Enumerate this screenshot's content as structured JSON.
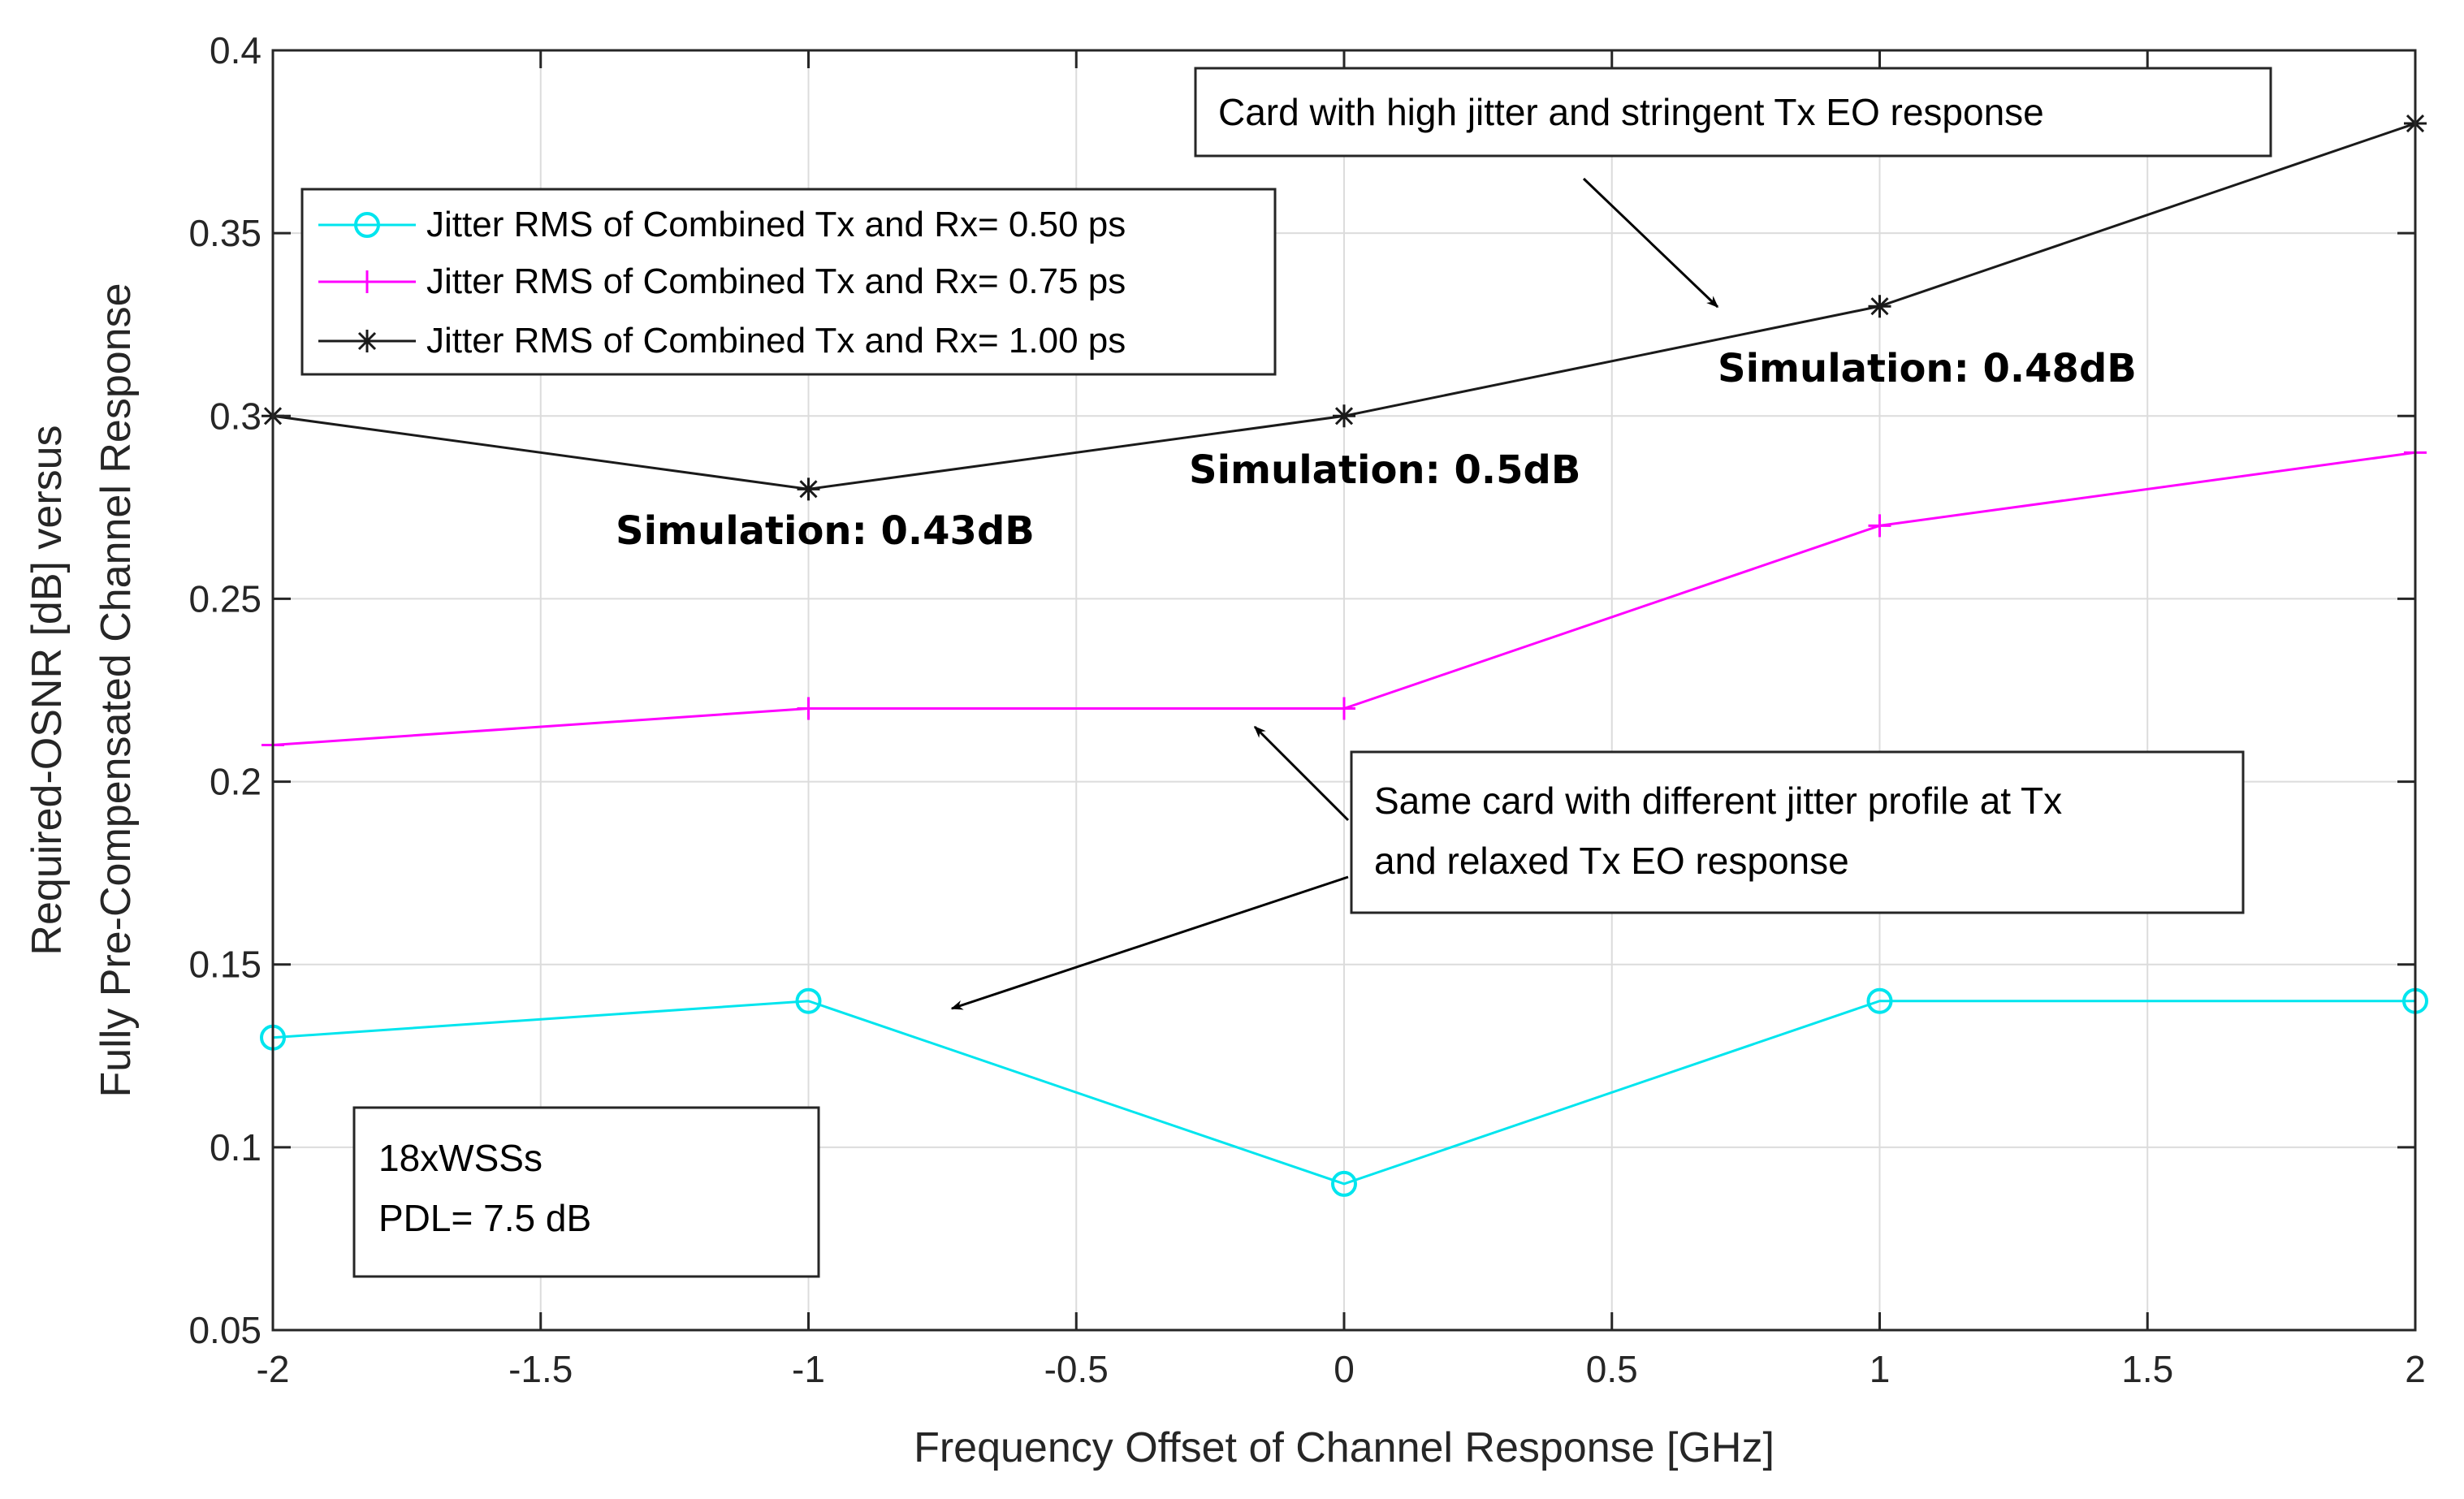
{
  "chart_data": {
    "type": "line",
    "title": "",
    "xlabel": "Frequency Offset of Channel Response [GHz]",
    "ylabel_lines": [
      "Required-OSNR [dB] versus",
      "Fully Pre-Compensated Channel Response"
    ],
    "xlim": [
      -2,
      2
    ],
    "ylim": [
      0.05,
      0.4
    ],
    "grid": true,
    "x": [
      -2,
      -1,
      0,
      1,
      2
    ],
    "xticks": [
      -2,
      -1.5,
      -1,
      -0.5,
      0,
      0.5,
      1,
      1.5,
      2
    ],
    "xtick_labels": [
      "-2",
      "-1.5",
      "-1",
      "-0.5",
      "0",
      "0.5",
      "1",
      "1.5",
      "2"
    ],
    "yticks": [
      0.05,
      0.1,
      0.15,
      0.2,
      0.25,
      0.3,
      0.35,
      0.4
    ],
    "ytick_labels": [
      "0.05",
      "0.1",
      "0.15",
      "0.2",
      "0.25",
      "0.3",
      "0.35",
      "0.4"
    ],
    "series": [
      {
        "name": "Jitter RMS of Combined Tx and Rx= 0.50 ps",
        "color": "#00e5ee",
        "marker": "circle",
        "values": [
          0.13,
          0.14,
          0.09,
          0.14,
          0.14
        ]
      },
      {
        "name": "Jitter RMS of Combined Tx and Rx= 0.75 ps",
        "color": "#ff00ff",
        "marker": "plus",
        "values": [
          0.21,
          0.22,
          0.22,
          0.27,
          0.29
        ]
      },
      {
        "name": "Jitter RMS of Combined Tx and Rx= 1.00 ps",
        "color": "#1a1a1a",
        "marker": "star",
        "values": [
          0.3,
          0.28,
          0.3,
          0.33,
          0.38
        ]
      }
    ],
    "legend_position": "top-left",
    "annotations": {
      "top_box": "Card with high jitter and stringent Tx EO response",
      "mid_box_lines": [
        "Same card with different jitter profile at Tx",
        "and relaxed Tx EO response"
      ],
      "info_box_lines": [
        "18xWSSs",
        "PDL= 7.5 dB"
      ],
      "simulation_labels": [
        "Simulation: 0.43dB",
        "Simulation: 0.5dB",
        "Simulation: 0.48dB"
      ]
    }
  }
}
